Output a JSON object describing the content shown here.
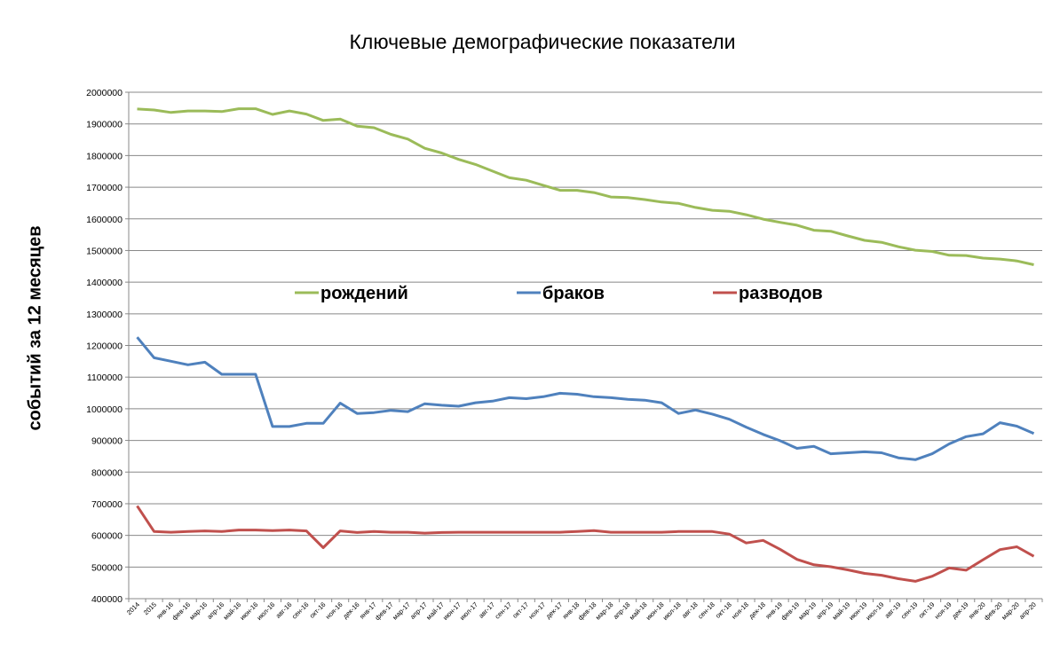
{
  "chart_data": {
    "type": "line",
    "title": "Ключевые демографические показатели",
    "ylabel": "событий за 12  месяцев",
    "xlabel": "",
    "ylim": [
      400000,
      2000000
    ],
    "yticks": [
      400000,
      500000,
      600000,
      700000,
      800000,
      900000,
      1000000,
      1100000,
      1200000,
      1300000,
      1400000,
      1500000,
      1600000,
      1700000,
      1800000,
      1900000,
      2000000
    ],
    "ytick_labels": [
      "400000",
      "500000",
      "600000",
      "700000",
      "800000",
      "900000",
      "1000000",
      "1100000",
      "1200000",
      "1300000",
      "1400000",
      "1500000",
      "1600000",
      "1700000",
      "1800000",
      "1900000",
      "2000000"
    ],
    "grid": "horizontal",
    "legend_position": "inside-top-center",
    "categories": [
      "2014",
      "2015",
      "янв-16",
      "фев-16",
      "мар-16",
      "апр-16",
      "май-16",
      "июн-16",
      "июл-16",
      "авг-16",
      "сен-16",
      "окт-16",
      "ноя-16",
      "дек-16",
      "янв-17",
      "фев-17",
      "мар-17",
      "апр-17",
      "май-17",
      "июн-17",
      "июл-17",
      "авг-17",
      "сен-17",
      "окт-17",
      "ноя-17",
      "дек-17",
      "янв-18",
      "фев-18",
      "мар-18",
      "апр-18",
      "май-18",
      "июн-18",
      "июл-18",
      "авг-18",
      "сен-18",
      "окт-18",
      "ноя-18",
      "дек-18",
      "янв-19",
      "фев-19",
      "мар-19",
      "апр-19",
      "май-19",
      "июн-19",
      "июл-19",
      "авг-19",
      "сен-19",
      "окт-19",
      "ноя-19",
      "дек-19",
      "янв-20",
      "фев-20",
      "мар-20",
      "апр-20"
    ],
    "series": [
      {
        "name": "рождений",
        "color": "#9bbb59",
        "values": [
          1947000,
          1944000,
          1936000,
          1941000,
          1941000,
          1939000,
          1948000,
          1948000,
          1930000,
          1941000,
          1931000,
          1911000,
          1915000,
          1893000,
          1888000,
          1867000,
          1852000,
          1823000,
          1808000,
          1788000,
          1772000,
          1751000,
          1730000,
          1722000,
          1706000,
          1690000,
          1690000,
          1683000,
          1669000,
          1667000,
          1661000,
          1653000,
          1649000,
          1636000,
          1627000,
          1624000,
          1613000,
          1599000,
          1589000,
          1580000,
          1564000,
          1561000,
          1546000,
          1532000,
          1526000,
          1512000,
          1501000,
          1497000,
          1485000,
          1484000,
          1476000,
          1473000,
          1467000,
          1455000
        ]
      },
      {
        "name": "браков",
        "color": "#4f81bd",
        "values": [
          1226000,
          1161000,
          1150000,
          1139000,
          1147000,
          1109000,
          1109000,
          1109000,
          944000,
          944000,
          954000,
          954000,
          1018000,
          985000,
          988000,
          995000,
          991000,
          1016000,
          1011000,
          1008000,
          1019000,
          1024000,
          1035000,
          1032000,
          1038000,
          1049000,
          1046000,
          1038000,
          1035000,
          1030000,
          1027000,
          1019000,
          985000,
          996000,
          983000,
          967000,
          942000,
          919000,
          899000,
          875000,
          881000,
          858000,
          861000,
          864000,
          861000,
          845000,
          839000,
          858000,
          889000,
          912000,
          921000,
          956000,
          945000,
          922000
        ]
      },
      {
        "name": "разводов",
        "color": "#c0504d",
        "values": [
          693000,
          612000,
          610000,
          612000,
          614000,
          612000,
          617000,
          617000,
          615000,
          617000,
          614000,
          561000,
          614000,
          609000,
          612000,
          610000,
          610000,
          607000,
          609000,
          610000,
          610000,
          610000,
          610000,
          610000,
          610000,
          610000,
          612000,
          615000,
          610000,
          610000,
          610000,
          610000,
          612000,
          612000,
          612000,
          604000,
          576000,
          584000,
          556000,
          524000,
          507000,
          501000,
          491000,
          480000,
          474000,
          463000,
          455000,
          471000,
          497000,
          490000,
          523000,
          555000,
          564000,
          534000
        ]
      }
    ]
  }
}
